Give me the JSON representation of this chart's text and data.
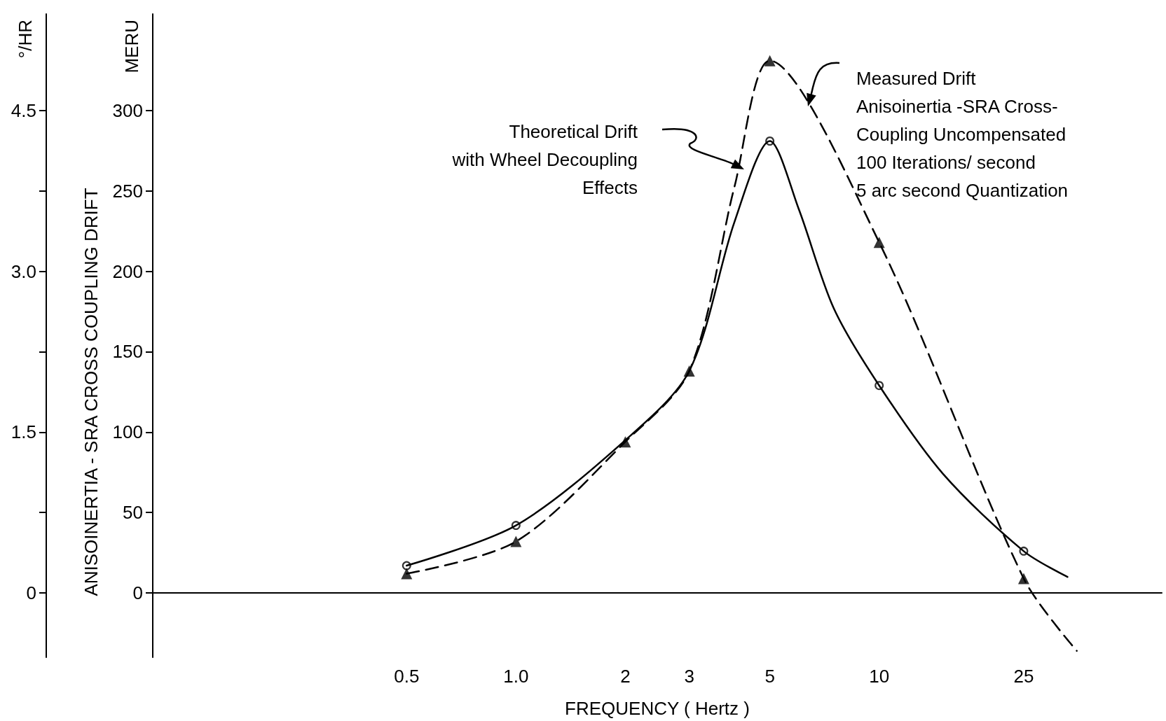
{
  "chart_data": {
    "type": "line",
    "xlabel": "FREQUENCY ( Hertz )",
    "ylabel": "MERU",
    "y2label": "°/HR",
    "annotations": [
      "ANISOINERTIA - SRA CROSS COUPLING DRIFT",
      "Theoretical Drift\nwith Wheel Decoupling\nEffects",
      "Measured Drift\nAnisoinertia -SRA Cross-\nCoupling Uncompensated\n100 Iterations/ second\n5 arc second Quantization"
    ],
    "log": "x",
    "xlim": [
      0.1,
      60
    ],
    "xticks": [
      0.5,
      {
        "value": 1,
        "label": "1.0"
      },
      2,
      3,
      5,
      10,
      25
    ],
    "ylim": [
      -40,
      360
    ],
    "yticks": [
      0,
      50,
      100,
      150,
      200,
      250,
      300
    ],
    "y2lim": [
      -0.6,
      5.4
    ],
    "y2ticks": [
      0,
      {
        "value": 0.75,
        "label": null
      },
      1.5,
      {
        "value": 2.25,
        "label": null
      },
      {
        "value": 3,
        "label": "3.0"
      },
      {
        "value": 3.75,
        "label": null
      },
      4.5
    ],
    "series": [
      {
        "type": "line",
        "color": "#000000",
        "marker": "none",
        "line_style": "solid",
        "x": [
          0.5,
          1,
          2,
          3,
          4,
          5,
          6,
          7.5,
          10,
          15,
          25,
          33
        ],
        "values": [
          17,
          42,
          95,
          138,
          231,
          281,
          239,
          177,
          129,
          74,
          26,
          10
        ]
      },
      {
        "type": "line",
        "color": "#000000",
        "marker": "none",
        "line_style": "dashed",
        "x": [
          0.5,
          1,
          2,
          3,
          4,
          5,
          10,
          25,
          35
        ],
        "values": [
          12,
          32,
          94,
          138,
          253,
          331,
          218,
          9,
          -36
        ]
      },
      {
        "type": "scatter",
        "color": "#000000",
        "marker": "circle",
        "x": [
          0.5,
          1,
          5,
          10,
          25
        ],
        "values": [
          17,
          42,
          281,
          129,
          26
        ]
      },
      {
        "type": "scatter",
        "color": "#000000",
        "marker": "triangle",
        "x": [
          0.5,
          1,
          2,
          3,
          5,
          10,
          25
        ],
        "values": [
          12,
          32,
          94,
          138,
          331,
          218,
          9
        ]
      }
    ]
  }
}
